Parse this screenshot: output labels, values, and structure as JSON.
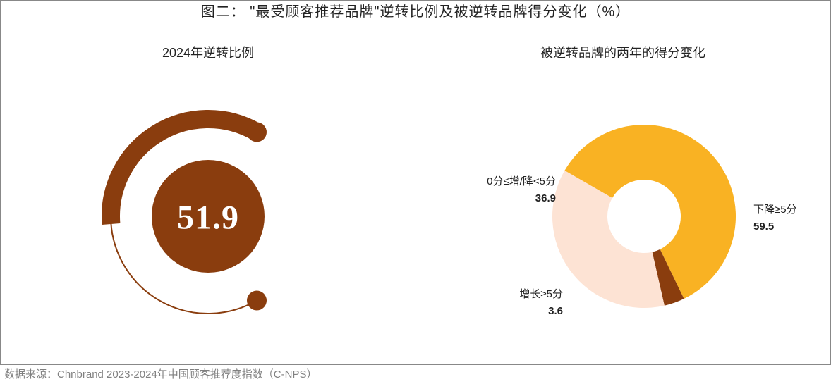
{
  "title": "图二： \"最受顾客推荐品牌\"逆转比例及被逆转品牌得分变化（%）",
  "footer": "数据来源：Chnbrand 2023-2024年中国顾客推荐度指数（C-NPS）",
  "gauge": {
    "subtitle": "2024年逆转比例",
    "value": 51.9,
    "value_text": "51.9",
    "ring_color": "#8a3d0e",
    "inner_circle_color": "#8a3d0e",
    "inner_circle_text_color": "#ffffff",
    "track_color": "#8a3d0e",
    "track_width": 2,
    "arc_width": 26,
    "arc_radius": 138,
    "inner_radius": 80,
    "start_angle_deg": 150,
    "sweep_total_deg": 240,
    "cap_radius": 14,
    "background": "#ffffff",
    "font_family": "Georgia, serif",
    "value_fontsize": 48
  },
  "donut": {
    "subtitle": "被逆转品牌的两年的得分变化",
    "background": "#ffffff",
    "outer_radius": 130,
    "inner_radius": 52,
    "center_fill": "#ffffff",
    "label_fontsize": 15,
    "value_fontsize": 15,
    "segments": [
      {
        "label": "下降≥5分",
        "value": 59.5,
        "value_text": "59.5",
        "color": "#f9b223"
      },
      {
        "label": "增长≥5分",
        "value": 3.6,
        "value_text": "3.6",
        "color": "#8a3d0e"
      },
      {
        "label": "0分≤增/降<5分",
        "value": 36.9,
        "value_text": "36.9",
        "color": "#fde3d4"
      }
    ],
    "start_angle_deg": -60
  }
}
